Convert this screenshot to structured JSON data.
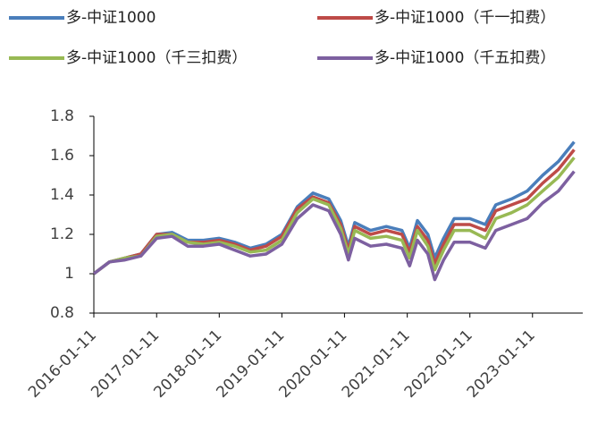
{
  "chart_data": {
    "type": "line",
    "x": [
      "2016-01-11",
      "2016-04-11",
      "2016-07-11",
      "2016-10-11",
      "2017-01-11",
      "2017-04-11",
      "2017-07-11",
      "2017-10-11",
      "2018-01-11",
      "2018-04-11",
      "2018-07-11",
      "2018-10-11",
      "2019-01-11",
      "2019-04-11",
      "2019-07-11",
      "2019-10-11",
      "2019-12-20",
      "2020-02-03",
      "2020-03-11",
      "2020-06-11",
      "2020-09-11",
      "2020-12-11",
      "2021-01-25",
      "2021-03-11",
      "2021-05-11",
      "2021-06-20",
      "2021-08-11",
      "2021-10-11",
      "2022-01-11",
      "2022-04-11",
      "2022-06-11",
      "2022-09-11",
      "2022-12-11",
      "2023-03-11",
      "2023-06-11",
      "2023-09-11"
    ],
    "series": [
      {
        "name": "多-中证1000",
        "color": "#4a7ebb",
        "values": [
          1.0,
          1.06,
          1.08,
          1.1,
          1.2,
          1.21,
          1.17,
          1.17,
          1.18,
          1.16,
          1.13,
          1.15,
          1.2,
          1.34,
          1.41,
          1.38,
          1.27,
          1.14,
          1.26,
          1.22,
          1.24,
          1.22,
          1.13,
          1.27,
          1.2,
          1.08,
          1.18,
          1.28,
          1.28,
          1.25,
          1.35,
          1.38,
          1.42,
          1.5,
          1.57,
          1.67
        ]
      },
      {
        "name": "多-中证1000（千一扣费）",
        "color": "#be4b48",
        "values": [
          1.0,
          1.06,
          1.08,
          1.1,
          1.2,
          1.2,
          1.16,
          1.16,
          1.17,
          1.15,
          1.12,
          1.14,
          1.19,
          1.33,
          1.39,
          1.36,
          1.25,
          1.12,
          1.24,
          1.2,
          1.22,
          1.2,
          1.11,
          1.24,
          1.17,
          1.05,
          1.15,
          1.25,
          1.25,
          1.22,
          1.32,
          1.35,
          1.38,
          1.46,
          1.53,
          1.63
        ]
      },
      {
        "name": "多-中证1000（千三扣费）",
        "color": "#98b954",
        "values": [
          1.0,
          1.06,
          1.08,
          1.09,
          1.19,
          1.2,
          1.16,
          1.15,
          1.16,
          1.14,
          1.11,
          1.12,
          1.17,
          1.31,
          1.38,
          1.35,
          1.23,
          1.1,
          1.22,
          1.18,
          1.19,
          1.17,
          1.08,
          1.22,
          1.14,
          1.02,
          1.12,
          1.22,
          1.22,
          1.18,
          1.28,
          1.31,
          1.35,
          1.42,
          1.49,
          1.59
        ]
      },
      {
        "name": "多-中证1000（千五扣费）",
        "color": "#7d60a0",
        "values": [
          1.0,
          1.06,
          1.07,
          1.09,
          1.18,
          1.19,
          1.14,
          1.14,
          1.15,
          1.12,
          1.09,
          1.1,
          1.15,
          1.28,
          1.35,
          1.32,
          1.2,
          1.07,
          1.18,
          1.14,
          1.15,
          1.13,
          1.04,
          1.17,
          1.1,
          0.97,
          1.07,
          1.16,
          1.16,
          1.13,
          1.22,
          1.25,
          1.28,
          1.36,
          1.42,
          1.52
        ]
      }
    ],
    "xlim": [
      "2016-01-11",
      "2023-10-31"
    ],
    "xticks": [
      "2016-01-11",
      "2017-01-11",
      "2018-01-11",
      "2019-01-11",
      "2020-01-11",
      "2021-01-11",
      "2022-01-11",
      "2023-01-11"
    ],
    "ylim": [
      0.8,
      1.8
    ],
    "yticks": [
      0.8,
      1,
      1.2,
      1.4,
      1.6,
      1.8
    ],
    "grid": false,
    "legend": "top"
  }
}
